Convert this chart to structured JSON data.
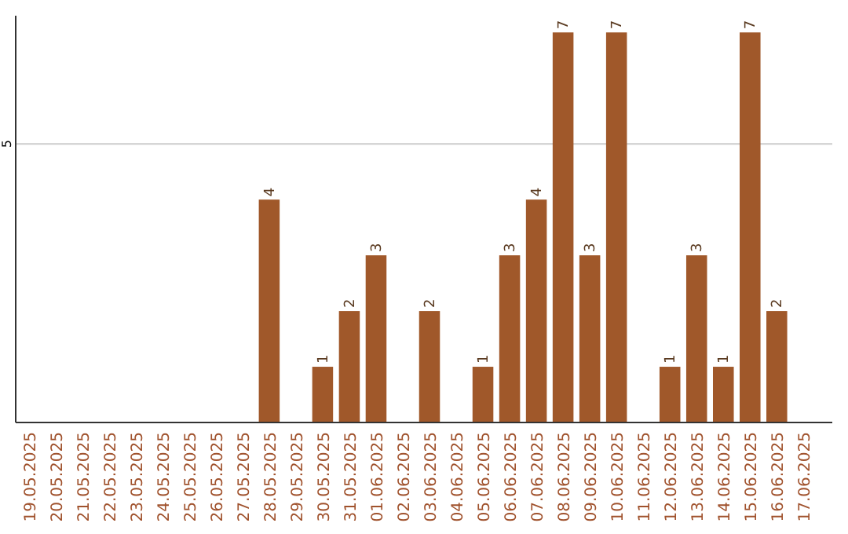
{
  "chart_data": {
    "type": "bar",
    "categories": [
      "19.05.2025",
      "20.05.2025",
      "21.05.2025",
      "22.05.2025",
      "23.05.2025",
      "24.05.2025",
      "25.05.2025",
      "26.05.2025",
      "27.05.2025",
      "28.05.2025",
      "29.05.2025",
      "30.05.2025",
      "31.05.2025",
      "01.06.2025",
      "02.06.2025",
      "03.06.2025",
      "04.06.2025",
      "05.06.2025",
      "06.06.2025",
      "07.06.2025",
      "08.06.2025",
      "09.06.2025",
      "10.06.2025",
      "11.06.2025",
      "12.06.2025",
      "13.06.2025",
      "14.06.2025",
      "15.06.2025",
      "16.06.2025",
      "17.06.2025"
    ],
    "values": [
      0,
      0,
      0,
      0,
      0,
      0,
      0,
      0,
      0,
      4,
      0,
      1,
      2,
      3,
      0,
      2,
      0,
      1,
      3,
      4,
      7,
      3,
      7,
      0,
      1,
      3,
      1,
      7,
      2,
      0
    ],
    "value_labels": [
      null,
      null,
      null,
      null,
      null,
      null,
      null,
      null,
      null,
      "4",
      null,
      "1",
      "2",
      "3",
      null,
      "2",
      null,
      "1",
      "3",
      "4",
      "7",
      "3",
      "7",
      null,
      "1",
      "3",
      "1",
      "7",
      "2",
      null
    ],
    "color": "#a0582a",
    "ylim": [
      0,
      7.3
    ],
    "yticks": [
      5
    ],
    "grid": "y"
  }
}
